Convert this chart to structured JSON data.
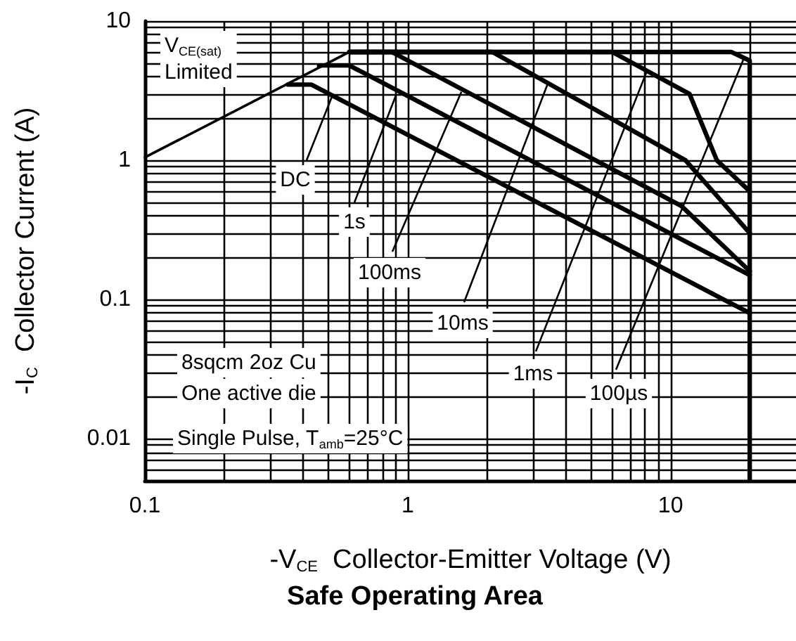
{
  "chart_data": {
    "type": "line",
    "title": "Safe Operating Area",
    "xlabel": "-V$_{CE}$  Collector-Emitter Voltage (V)",
    "ylabel": "-I$_{C}$  Collector Current (A)",
    "log": "xy",
    "grid": true,
    "marker": "none",
    "line_style": "solid",
    "xlim": [
      0.1,
      30
    ],
    "ylim": [
      0.005,
      10
    ],
    "xticks": [
      0.1,
      {
        "value": 0.2,
        "label": null
      },
      {
        "value": 0.3,
        "label": null
      },
      {
        "value": 0.4,
        "label": null
      },
      {
        "value": 0.5,
        "label": null
      },
      {
        "value": 0.6,
        "label": null
      },
      {
        "value": 0.7,
        "label": null
      },
      {
        "value": 0.8,
        "label": null
      },
      {
        "value": 0.9,
        "label": null
      },
      1,
      {
        "value": 2,
        "label": null
      },
      {
        "value": 3,
        "label": null
      },
      {
        "value": 4,
        "label": null
      },
      {
        "value": 5,
        "label": null
      },
      {
        "value": 6,
        "label": null
      },
      {
        "value": 7,
        "label": null
      },
      {
        "value": 8,
        "label": null
      },
      {
        "value": 9,
        "label": null
      },
      10,
      {
        "value": 20,
        "label": null
      }
    ],
    "yticks": [
      {
        "value": 0.006,
        "label": null
      },
      {
        "value": 0.007,
        "label": null
      },
      {
        "value": 0.008,
        "label": null
      },
      {
        "value": 0.009,
        "label": null
      },
      0.01,
      {
        "value": 0.02,
        "label": null
      },
      {
        "value": 0.03,
        "label": null
      },
      {
        "value": 0.04,
        "label": null
      },
      {
        "value": 0.05,
        "label": null
      },
      {
        "value": 0.06,
        "label": null
      },
      {
        "value": 0.07,
        "label": null
      },
      {
        "value": 0.08,
        "label": null
      },
      {
        "value": 0.09,
        "label": null
      },
      0.1,
      {
        "value": 0.2,
        "label": null
      },
      {
        "value": 0.3,
        "label": null
      },
      {
        "value": 0.4,
        "label": null
      },
      {
        "value": 0.5,
        "label": null
      },
      {
        "value": 0.6,
        "label": null
      },
      {
        "value": 0.7,
        "label": null
      },
      {
        "value": 0.8,
        "label": null
      },
      {
        "value": 0.9,
        "label": null
      },
      1,
      {
        "value": 2,
        "label": null
      },
      {
        "value": 3,
        "label": null
      },
      {
        "value": 4,
        "label": null
      },
      {
        "value": 5,
        "label": null
      },
      {
        "value": 6,
        "label": null
      },
      {
        "value": 7,
        "label": null
      },
      {
        "value": 8,
        "label": null
      },
      {
        "value": 9,
        "label": null
      },
      10
    ],
    "series": [
      {
        "color": "#000000",
        "x": [
          0.1,
          0.6
        ],
        "values": [
          1.05,
          6
        ]
      },
      {
        "color": "#000000",
        "x": [
          0.35,
          0.43,
          20
        ],
        "values": [
          3.5,
          3.5,
          0.08
        ]
      },
      {
        "color": "#000000",
        "x": [
          0.46,
          0.6,
          20
        ],
        "values": [
          4.8,
          4.8,
          0.15
        ]
      },
      {
        "color": "#000000",
        "x": [
          0.6,
          0.87,
          11,
          20
        ],
        "values": [
          6,
          6,
          0.47,
          0.16
        ]
      },
      {
        "color": "#000000",
        "x": [
          0.6,
          2.1,
          11.4,
          20
        ],
        "values": [
          6,
          6,
          1.0,
          0.3
        ]
      },
      {
        "color": "#000000",
        "x": [
          0.6,
          6,
          11.8,
          15,
          20
        ],
        "values": [
          6,
          6,
          3.0,
          1.0,
          0.6
        ]
      },
      {
        "color": "#000000",
        "x": [
          0.6,
          17,
          20,
          20
        ],
        "values": [
          6,
          6,
          5.2,
          0.005
        ]
      }
    ],
    "annotations": [
      "V$_{CE(sat)}$\nLimited",
      {
        "text": "DC",
        "x": 0.52,
        "y": 3.0
      },
      {
        "text": "1s",
        "x": 0.9,
        "y": 2.9
      },
      {
        "text": "100ms",
        "x": 1.6,
        "y": 3.1
      },
      {
        "text": "10ms",
        "x": 3.4,
        "y": 3.5
      },
      {
        "text": "1ms",
        "x": 8.1,
        "y": 4.3
      },
      {
        "text": "100µs",
        "x": 19,
        "y": 5.4
      },
      "8sqcm 2oz Cu",
      "One active die",
      "Single Pulse, T$_{amb}$=25°C"
    ]
  }
}
